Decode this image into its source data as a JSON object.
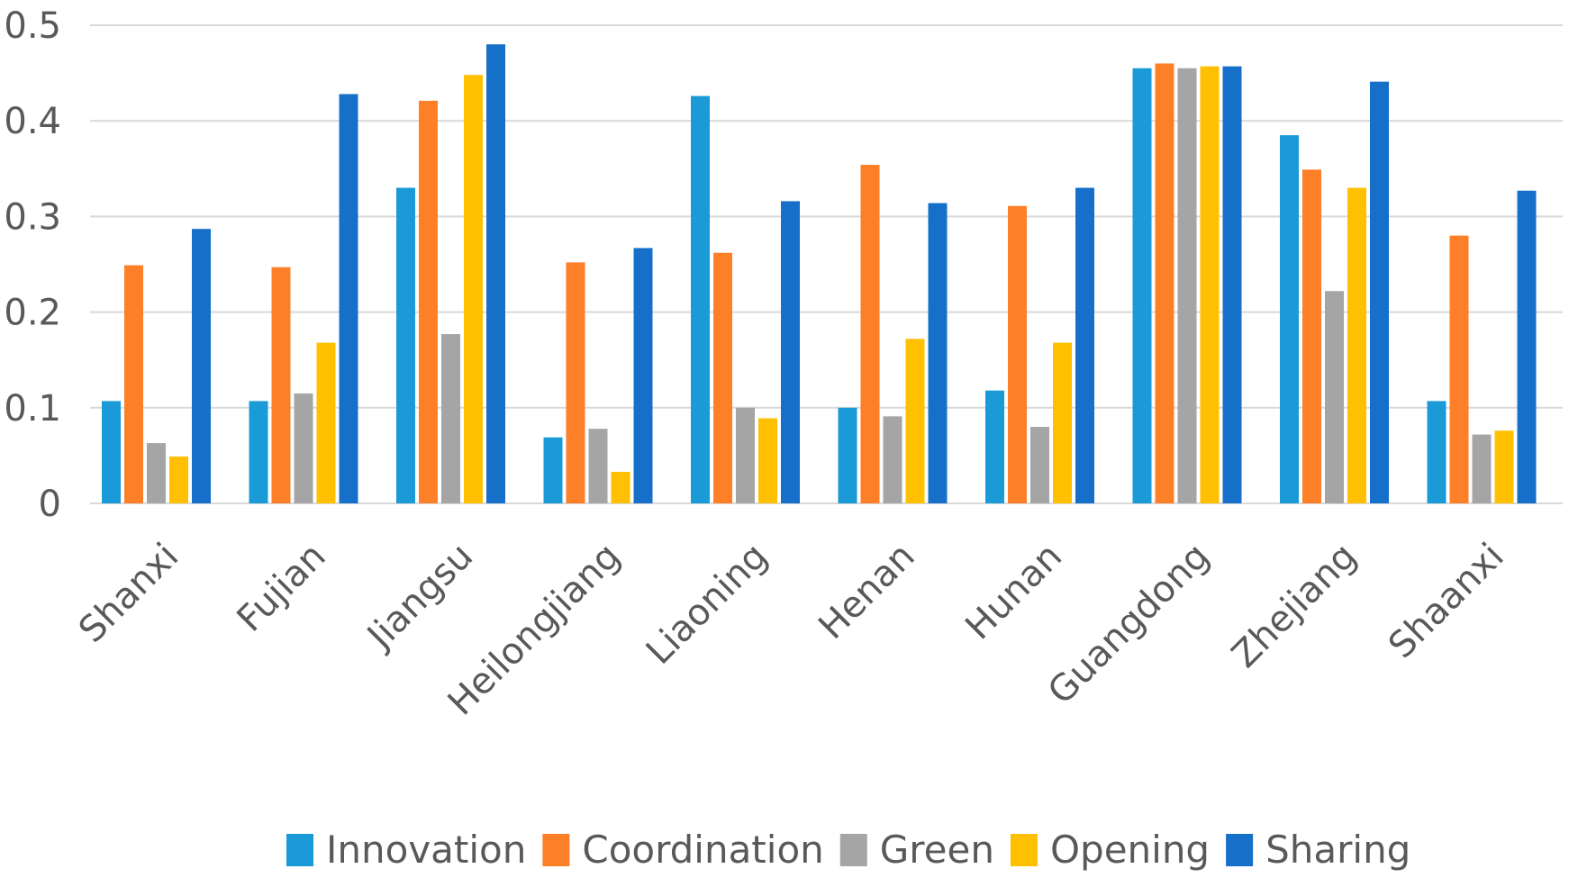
{
  "chart_data": {
    "type": "bar",
    "title": "",
    "xlabel": "",
    "ylabel": "",
    "ylim": [
      0,
      0.5
    ],
    "yticks": [
      0,
      0.1,
      0.2,
      0.3,
      0.4,
      0.5
    ],
    "ytick_labels": [
      "0",
      "0.1",
      "0.2",
      "0.3",
      "0.4",
      "0.5"
    ],
    "grid": true,
    "legend_position": "bottom",
    "categories": [
      "Shanxi",
      "Fujian",
      "Jiangsu",
      "Heilongjiang",
      "Liaoning",
      "Henan",
      "Hunan",
      "Guangdong",
      "Zhejiang",
      "Shaanxi"
    ],
    "series": [
      {
        "name": "Innovation",
        "color": "#1a9ad6",
        "values": [
          0.107,
          0.107,
          0.33,
          0.069,
          0.426,
          0.1,
          0.118,
          0.455,
          0.385,
          0.107
        ]
      },
      {
        "name": "Coordination",
        "color": "#fd7f28",
        "values": [
          0.249,
          0.247,
          0.421,
          0.252,
          0.262,
          0.354,
          0.311,
          0.46,
          0.349,
          0.28
        ]
      },
      {
        "name": "Green",
        "color": "#a5a5a5",
        "values": [
          0.063,
          0.115,
          0.177,
          0.078,
          0.1,
          0.091,
          0.08,
          0.455,
          0.222,
          0.072
        ]
      },
      {
        "name": "Opening",
        "color": "#fec000",
        "values": [
          0.049,
          0.168,
          0.448,
          0.033,
          0.089,
          0.172,
          0.168,
          0.457,
          0.33,
          0.076
        ]
      },
      {
        "name": "Sharing",
        "color": "#1670c9",
        "values": [
          0.287,
          0.428,
          0.48,
          0.267,
          0.316,
          0.314,
          0.33,
          0.457,
          0.441,
          0.327
        ]
      }
    ]
  }
}
